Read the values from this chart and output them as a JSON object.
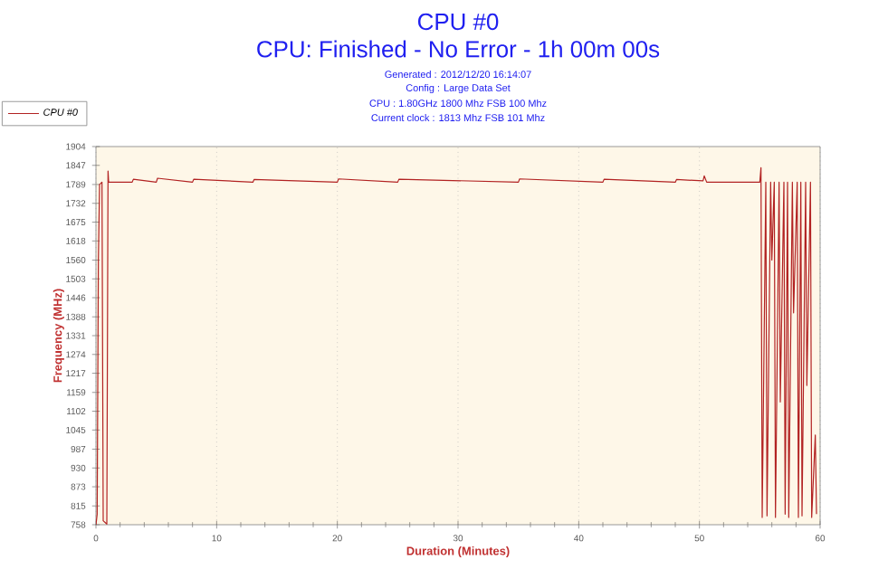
{
  "chart_data": {
    "type": "line",
    "title": "CPU #0",
    "subtitle": "CPU: Finished - No Error - 1h 00m 00s",
    "annotations": [
      "Generated : 2012/12/20 16:14:07",
      "Config : Large Data Set",
      "CPU : 1.80GHz 1800 Mhz FSB 100 Mhz",
      "Current clock : 1813 Mhz FSB 101 Mhz"
    ],
    "xlabel": "Duration (Minutes)",
    "ylabel": "Frequency (MHz)",
    "xlim": [
      0,
      60
    ],
    "xticks": [
      0,
      10,
      20,
      30,
      40,
      50,
      60
    ],
    "ylim": [
      758,
      1904
    ],
    "yticks": [
      758,
      815,
      873,
      930,
      987,
      1045,
      1102,
      1159,
      1217,
      1274,
      1331,
      1388,
      1446,
      1503,
      1560,
      1618,
      1675,
      1732,
      1789,
      1847,
      1904
    ],
    "grid": "x",
    "legend": "top left",
    "marker": "none",
    "line_style": "solid",
    "series": [
      {
        "name": "CPU #0",
        "color": "#b22222",
        "x": [
          0,
          0.1,
          0.2,
          0.3,
          0.5,
          0.6,
          0.9,
          1.0,
          1.05,
          3,
          3.1,
          5,
          5.1,
          8,
          8.1,
          13,
          13.1,
          20,
          20.1,
          25,
          25.1,
          35,
          35.1,
          42,
          42.1,
          48,
          48.1,
          50.3,
          50.4,
          50.6,
          55.0,
          55.1,
          55.2,
          55.5,
          55.6,
          55.9,
          56.0,
          56.2,
          56.3,
          56.6,
          56.7,
          57.0,
          57.1,
          57.3,
          57.4,
          57.7,
          57.8,
          58.1,
          58.2,
          58.4,
          58.5,
          58.8,
          58.9,
          59.2,
          59.3,
          59.6,
          59.7
        ],
        "values": [
          758,
          790,
          1560,
          1789,
          1796,
          770,
          760,
          1830,
          1796,
          1796,
          1805,
          1796,
          1808,
          1796,
          1805,
          1796,
          1804,
          1796,
          1806,
          1796,
          1805,
          1796,
          1806,
          1796,
          1805,
          1796,
          1804,
          1800,
          1815,
          1796,
          1796,
          1840,
          780,
          1796,
          785,
          1796,
          1560,
          1796,
          780,
          1796,
          1130,
          1796,
          790,
          1796,
          780,
          1796,
          1400,
          1796,
          780,
          1796,
          785,
          1796,
          1180,
          1796,
          780,
          1030,
          790
        ]
      }
    ]
  }
}
